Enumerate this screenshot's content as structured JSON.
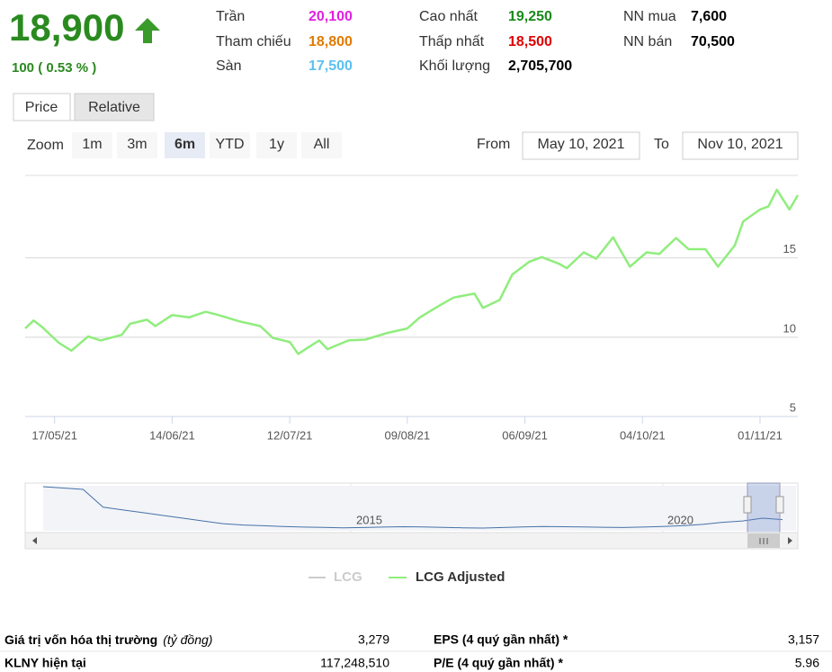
{
  "header": {
    "price": "18,900",
    "change": "100 ( 0.53 % )",
    "stats": [
      {
        "label": "Trần",
        "value": "20,100",
        "color": "#e020e0"
      },
      {
        "label": "Tham chiếu",
        "value": "18,800",
        "color": "#e07b00"
      },
      {
        "label": "Sàn",
        "value": "17,500",
        "color": "#5bc0f0"
      },
      {
        "label": "Cao nhất",
        "value": "19,250",
        "color": "#1a8a1a"
      },
      {
        "label": "Thấp nhất",
        "value": "18,500",
        "color": "#e00000"
      },
      {
        "label": "Khối lượng",
        "value": "2,705,700",
        "color": "#000000"
      },
      {
        "label": "NN mua",
        "value": "7,600",
        "color": "#000000"
      },
      {
        "label": "NN bán",
        "value": "70,500",
        "color": "#000000"
      }
    ]
  },
  "tabs": [
    "Price",
    "Relative"
  ],
  "zoom": {
    "label": "Zoom",
    "buttons": [
      "1m",
      "3m",
      "6m",
      "YTD",
      "1y",
      "All"
    ],
    "selected": "6m"
  },
  "range": {
    "from_label": "From",
    "from": "May 10, 2021",
    "to_label": "To",
    "to": "Nov 10, 2021"
  },
  "chart_data": {
    "type": "line",
    "x": [
      "2021-05-10",
      "2021-05-12",
      "2021-05-14",
      "2021-05-18",
      "2021-05-21",
      "2021-05-25",
      "2021-05-28",
      "2021-06-02",
      "2021-06-04",
      "2021-06-08",
      "2021-06-10",
      "2021-06-14",
      "2021-06-18",
      "2021-06-22",
      "2021-06-25",
      "2021-06-30",
      "2021-07-05",
      "2021-07-08",
      "2021-07-12",
      "2021-07-14",
      "2021-07-19",
      "2021-07-21",
      "2021-07-26",
      "2021-07-30",
      "2021-08-04",
      "2021-08-09",
      "2021-08-12",
      "2021-08-17",
      "2021-08-20",
      "2021-08-25",
      "2021-08-27",
      "2021-08-31",
      "2021-09-03",
      "2021-09-07",
      "2021-09-10",
      "2021-09-14",
      "2021-09-16",
      "2021-09-20",
      "2021-09-23",
      "2021-09-27",
      "2021-10-01",
      "2021-10-05",
      "2021-10-08",
      "2021-10-12",
      "2021-10-15",
      "2021-10-19",
      "2021-10-22",
      "2021-10-26",
      "2021-10-28",
      "2021-11-01",
      "2021-11-03",
      "2021-11-05",
      "2021-11-08",
      "2021-11-10"
    ],
    "series": [
      {
        "name": "LCG Adjusted",
        "color": "#90ed7d",
        "values": [
          10.55,
          11.05,
          10.65,
          9.65,
          9.15,
          10.05,
          9.8,
          10.15,
          10.85,
          11.1,
          10.7,
          11.4,
          11.25,
          11.6,
          11.4,
          11.0,
          10.7,
          9.95,
          9.7,
          8.95,
          9.8,
          9.25,
          9.8,
          9.85,
          10.25,
          10.55,
          11.25,
          12.05,
          12.5,
          12.75,
          11.85,
          12.35,
          13.95,
          14.75,
          15.05,
          14.65,
          14.35,
          15.35,
          14.95,
          16.3,
          14.45,
          15.35,
          15.25,
          16.25,
          15.55,
          15.55,
          14.45,
          15.8,
          17.3,
          18.05,
          18.25,
          19.3,
          18.05,
          18.95
        ]
      }
    ],
    "hidden_series": [
      {
        "name": "LCG",
        "color": "#cccccc"
      }
    ],
    "xlim": [
      "2021-05-10",
      "2021-11-10"
    ],
    "xticks": [
      {
        "value": "2021-05-17",
        "label": "17/05/21"
      },
      {
        "value": "2021-06-14",
        "label": "14/06/21"
      },
      {
        "value": "2021-07-12",
        "label": "12/07/21"
      },
      {
        "value": "2021-08-09",
        "label": "09/08/21"
      },
      {
        "value": "2021-09-06",
        "label": "06/09/21"
      },
      {
        "value": "2021-10-04",
        "label": "04/10/21"
      },
      {
        "value": "2021-11-01",
        "label": "01/11/21"
      }
    ],
    "ylim": [
      5,
      20.2
    ],
    "yticks": [
      5,
      10,
      15
    ],
    "grid": true
  },
  "navigator": {
    "labels": [
      "2015",
      "2020"
    ],
    "values": [
      40,
      39,
      38,
      25,
      23,
      21,
      19,
      17,
      15,
      13,
      12,
      11.5,
      11,
      10.5,
      10.3,
      10,
      10.2,
      10.5,
      10.8,
      10.6,
      10.3,
      10,
      9.8,
      10.2,
      10.6,
      11,
      10.8,
      10.6,
      10.4,
      10.2,
      10.5,
      11,
      11.5,
      12.5,
      14,
      15,
      17,
      16
    ]
  },
  "footer": {
    "rows": [
      {
        "label": "Giá trị vốn hóa thị trường",
        "note": "(tỷ đồng)",
        "value": "3,279",
        "label2": "EPS (4 quý gần nhất) *",
        "value2": "3,157"
      },
      {
        "label": "KLNY hiện tại",
        "value": "117,248,510",
        "label2": "P/E (4 quý gần nhất) *",
        "value2": "5.96"
      }
    ]
  }
}
